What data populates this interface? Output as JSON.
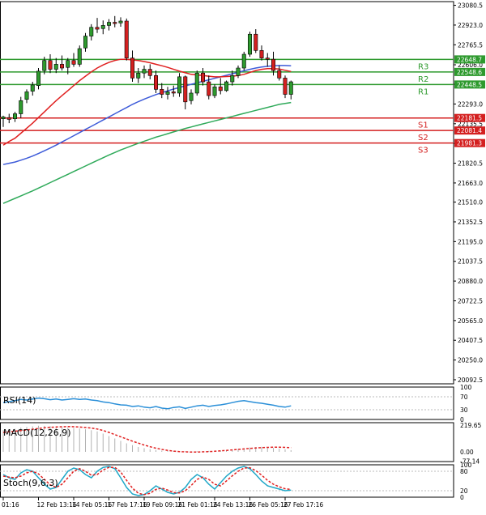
{
  "chart_data": [
    {
      "type": "candlestick",
      "panel": "price",
      "y_ticks": [
        23080.5,
        22923.0,
        22765.5,
        22606.0,
        22450.5,
        22293.0,
        22135.5,
        21978.0,
        21820.5,
        21663.0,
        21510.0,
        21352.5,
        21195.0,
        21037.5,
        20880.0,
        20722.5,
        20565.0,
        20407.5,
        20250.0,
        20092.5
      ],
      "ylim": [
        20060,
        23110
      ],
      "x_ticks": [
        "01:16",
        "12 Feb 13:16",
        "14 Feb 05:16",
        "17 Feb 17:16",
        "19 Feb 09:16",
        "21 Feb 01:16",
        "24 Feb 13:16",
        "26 Feb 05:16",
        "27 Feb 17:16"
      ],
      "levels": [
        {
          "label": "R3",
          "value": 22648.7,
          "tag": "22648.7",
          "color": "#2e9a2e"
        },
        {
          "label": "R2",
          "value": 22548.6,
          "tag": "22548.6",
          "color": "#2e9a2e"
        },
        {
          "label": "R1",
          "value": 22448.5,
          "tag": "22448.5",
          "color": "#2e9a2e"
        },
        {
          "label": "S1",
          "value": 22181.5,
          "tag": "22181.5",
          "color": "#d42020"
        },
        {
          "label": "S2",
          "value": 22081.4,
          "tag": "22081.4",
          "color": "#d42020"
        },
        {
          "label": "S3",
          "value": 21981.3,
          "tag": "21981.3",
          "color": "#d42020"
        }
      ],
      "candles": [
        {
          "o": 22175,
          "h": 22200,
          "l": 22110,
          "c": 22190
        },
        {
          "o": 22185,
          "h": 22215,
          "l": 22140,
          "c": 22170
        },
        {
          "o": 22175,
          "h": 22230,
          "l": 22150,
          "c": 22215
        },
        {
          "o": 22215,
          "h": 22350,
          "l": 22180,
          "c": 22320
        },
        {
          "o": 22330,
          "h": 22410,
          "l": 22300,
          "c": 22390
        },
        {
          "o": 22395,
          "h": 22470,
          "l": 22360,
          "c": 22445
        },
        {
          "o": 22440,
          "h": 22580,
          "l": 22410,
          "c": 22555
        },
        {
          "o": 22560,
          "h": 22670,
          "l": 22530,
          "c": 22640
        },
        {
          "o": 22640,
          "h": 22690,
          "l": 22540,
          "c": 22570
        },
        {
          "o": 22570,
          "h": 22660,
          "l": 22540,
          "c": 22610
        },
        {
          "o": 22610,
          "h": 22680,
          "l": 22560,
          "c": 22580
        },
        {
          "o": 22585,
          "h": 22660,
          "l": 22530,
          "c": 22640
        },
        {
          "o": 22640,
          "h": 22700,
          "l": 22590,
          "c": 22610
        },
        {
          "o": 22610,
          "h": 22760,
          "l": 22590,
          "c": 22735
        },
        {
          "o": 22740,
          "h": 22860,
          "l": 22710,
          "c": 22835
        },
        {
          "o": 22835,
          "h": 22930,
          "l": 22800,
          "c": 22905
        },
        {
          "o": 22905,
          "h": 22980,
          "l": 22860,
          "c": 22890
        },
        {
          "o": 22895,
          "h": 22960,
          "l": 22850,
          "c": 22920
        },
        {
          "o": 22920,
          "h": 22970,
          "l": 22880,
          "c": 22945
        },
        {
          "o": 22945,
          "h": 22995,
          "l": 22905,
          "c": 22935
        },
        {
          "o": 22940,
          "h": 22985,
          "l": 22910,
          "c": 22955
        },
        {
          "o": 22955,
          "h": 22975,
          "l": 22640,
          "c": 22660
        },
        {
          "o": 22660,
          "h": 22720,
          "l": 22470,
          "c": 22500
        },
        {
          "o": 22500,
          "h": 22580,
          "l": 22460,
          "c": 22540
        },
        {
          "o": 22540,
          "h": 22600,
          "l": 22500,
          "c": 22570
        },
        {
          "o": 22570,
          "h": 22610,
          "l": 22490,
          "c": 22520
        },
        {
          "o": 22520,
          "h": 22560,
          "l": 22380,
          "c": 22410
        },
        {
          "o": 22410,
          "h": 22460,
          "l": 22340,
          "c": 22370
        },
        {
          "o": 22370,
          "h": 22430,
          "l": 22330,
          "c": 22390
        },
        {
          "o": 22390,
          "h": 22440,
          "l": 22350,
          "c": 22380
        },
        {
          "o": 22380,
          "h": 22540,
          "l": 22350,
          "c": 22510
        },
        {
          "o": 22510,
          "h": 22520,
          "l": 22250,
          "c": 22310
        },
        {
          "o": 22320,
          "h": 22410,
          "l": 22290,
          "c": 22380
        },
        {
          "o": 22380,
          "h": 22560,
          "l": 22360,
          "c": 22540
        },
        {
          "o": 22540,
          "h": 22580,
          "l": 22440,
          "c": 22470
        },
        {
          "o": 22470,
          "h": 22520,
          "l": 22330,
          "c": 22360
        },
        {
          "o": 22360,
          "h": 22450,
          "l": 22340,
          "c": 22430
        },
        {
          "o": 22430,
          "h": 22500,
          "l": 22370,
          "c": 22400
        },
        {
          "o": 22400,
          "h": 22480,
          "l": 22390,
          "c": 22470
        },
        {
          "o": 22470,
          "h": 22560,
          "l": 22440,
          "c": 22520
        },
        {
          "o": 22520,
          "h": 22600,
          "l": 22500,
          "c": 22580
        },
        {
          "o": 22580,
          "h": 22710,
          "l": 22560,
          "c": 22690
        },
        {
          "o": 22690,
          "h": 22870,
          "l": 22670,
          "c": 22850
        },
        {
          "o": 22850,
          "h": 22890,
          "l": 22700,
          "c": 22720
        },
        {
          "o": 22720,
          "h": 22760,
          "l": 22640,
          "c": 22660
        },
        {
          "o": 22660,
          "h": 22700,
          "l": 22590,
          "c": 22650
        },
        {
          "o": 22650,
          "h": 22710,
          "l": 22520,
          "c": 22560
        },
        {
          "o": 22560,
          "h": 22600,
          "l": 22480,
          "c": 22500
        },
        {
          "o": 22500,
          "h": 22520,
          "l": 22340,
          "c": 22370
        },
        {
          "o": 22370,
          "h": 22480,
          "l": 22330,
          "c": 22470
        }
      ],
      "ma_red": [
        21965,
        21995,
        22020,
        22060,
        22100,
        22140,
        22185,
        22230,
        22275,
        22320,
        22360,
        22400,
        22440,
        22480,
        22515,
        22550,
        22580,
        22605,
        22625,
        22640,
        22650,
        22650,
        22645,
        22640,
        22632,
        22622,
        22610,
        22598,
        22585,
        22570,
        22555,
        22542,
        22530,
        22525,
        22520,
        22515,
        22510,
        22510,
        22512,
        22515,
        22520,
        22530,
        22545,
        22560,
        22570,
        22575,
        22575,
        22572,
        22562,
        22552
      ],
      "ma_blue": [
        21810,
        21820,
        21830,
        21845,
        21860,
        21878,
        21898,
        21920,
        21942,
        21965,
        21990,
        22015,
        22040,
        22065,
        22090,
        22115,
        22140,
        22165,
        22190,
        22215,
        22240,
        22265,
        22290,
        22312,
        22332,
        22350,
        22368,
        22384,
        22398,
        22412,
        22425,
        22438,
        22450,
        22462,
        22474,
        22486,
        22498,
        22510,
        22522,
        22534,
        22546,
        22558,
        22570,
        22580,
        22588,
        22594,
        22598,
        22600,
        22600,
        22598
      ],
      "ma_green": [
        21500,
        21520,
        21540,
        21560,
        21580,
        21600,
        21622,
        21644,
        21666,
        21688,
        21710,
        21732,
        21754,
        21776,
        21798,
        21820,
        21842,
        21864,
        21886,
        21906,
        21926,
        21944,
        21962,
        21980,
        21996,
        22012,
        22028,
        22042,
        22056,
        22070,
        22084,
        22098,
        22110,
        22122,
        22134,
        22146,
        22158,
        22170,
        22182,
        22194,
        22206,
        22218,
        22230,
        22242,
        22254,
        22266,
        22278,
        22290,
        22298,
        22305
      ]
    },
    {
      "type": "line",
      "panel": "rsi",
      "title": "RSI(14)",
      "y_ticks": [
        100,
        70,
        30,
        0
      ],
      "ylim": [
        0,
        100
      ],
      "values": [
        52,
        55,
        58,
        62,
        60,
        63,
        66,
        64,
        61,
        63,
        60,
        62,
        64,
        62,
        63,
        60,
        58,
        54,
        52,
        48,
        45,
        44,
        40,
        42,
        38,
        36,
        40,
        35,
        33,
        37,
        39,
        34,
        38,
        42,
        44,
        40,
        43,
        45,
        48,
        52,
        56,
        58,
        55,
        52,
        50,
        47,
        44,
        40,
        38,
        42
      ]
    },
    {
      "type": "histogram+line",
      "panel": "macd",
      "title": "MACD(12,26,9)",
      "y_ticks": [
        "219.65",
        "0.00",
        "-77.14"
      ],
      "ylim": [
        -80,
        240
      ],
      "histogram": [
        180,
        185,
        190,
        200,
        205,
        210,
        215,
        214,
        212,
        208,
        204,
        200,
        196,
        192,
        186,
        178,
        168,
        150,
        130,
        110,
        90,
        70,
        55,
        40,
        30,
        22,
        15,
        10,
        8,
        6,
        5,
        4,
        4,
        5,
        6,
        8,
        10,
        12,
        14,
        18,
        24,
        30,
        36,
        40,
        42,
        38,
        32,
        26,
        20,
        14
      ],
      "signal": [
        160,
        165,
        170,
        175,
        180,
        186,
        192,
        198,
        202,
        205,
        207,
        208,
        207,
        205,
        201,
        196,
        188,
        176,
        160,
        142,
        124,
        106,
        88,
        72,
        56,
        42,
        30,
        20,
        12,
        6,
        2,
        0,
        -2,
        -2,
        0,
        2,
        5,
        8,
        12,
        16,
        20,
        24,
        28,
        32,
        35,
        37,
        38,
        38,
        37,
        35
      ]
    },
    {
      "type": "line",
      "panel": "stoch",
      "title": "Stoch(9,6,3)",
      "y_ticks": [
        100,
        80,
        20,
        0
      ],
      "ylim": [
        0,
        100
      ],
      "k": [
        70,
        60,
        55,
        75,
        85,
        80,
        60,
        40,
        25,
        30,
        55,
        80,
        90,
        85,
        70,
        60,
        80,
        92,
        95,
        88,
        60,
        30,
        10,
        5,
        8,
        20,
        35,
        25,
        15,
        10,
        15,
        30,
        55,
        70,
        60,
        40,
        25,
        45,
        65,
        80,
        90,
        95,
        88,
        70,
        50,
        35,
        30,
        25,
        20,
        22
      ],
      "d": [
        65,
        62,
        60,
        65,
        75,
        80,
        72,
        55,
        38,
        30,
        40,
        60,
        80,
        88,
        80,
        68,
        70,
        84,
        92,
        92,
        78,
        52,
        28,
        12,
        8,
        12,
        24,
        28,
        22,
        14,
        13,
        20,
        36,
        55,
        62,
        55,
        40,
        35,
        50,
        66,
        80,
        90,
        91,
        82,
        68,
        52,
        40,
        32,
        26,
        24
      ]
    }
  ]
}
